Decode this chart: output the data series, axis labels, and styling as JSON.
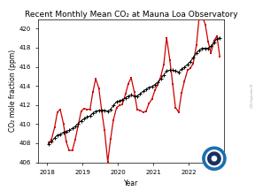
{
  "title": "Recent Monthly Mean CO₂ at Mauna Loa Observatory",
  "xlabel": "Year",
  "ylabel": "CO₂ mole fraction (ppm)",
  "ylim": [
    406,
    421
  ],
  "xlim_start": 2017.75,
  "xlim_end": 2023.0,
  "yticks": [
    406,
    408,
    410,
    412,
    414,
    416,
    418,
    420
  ],
  "xticks": [
    2018,
    2019,
    2020,
    2021,
    2022
  ],
  "bg_color": "#ffffff",
  "plot_bg": "#ffffff",
  "red_color": "#cc0000",
  "black_color": "#000000",
  "red_data": {
    "x": [
      2018.04,
      2018.12,
      2018.21,
      2018.29,
      2018.37,
      2018.46,
      2018.54,
      2018.62,
      2018.71,
      2018.79,
      2018.87,
      2018.96,
      2019.04,
      2019.12,
      2019.21,
      2019.29,
      2019.37,
      2019.46,
      2019.54,
      2019.62,
      2019.71,
      2019.79,
      2019.87,
      2019.96,
      2020.04,
      2020.12,
      2020.21,
      2020.29,
      2020.37,
      2020.46,
      2020.54,
      2020.62,
      2020.71,
      2020.79,
      2020.87,
      2020.96,
      2021.04,
      2021.12,
      2021.21,
      2021.29,
      2021.37,
      2021.46,
      2021.54,
      2021.62,
      2021.71,
      2021.79,
      2021.87,
      2021.96,
      2022.04,
      2022.12,
      2022.21,
      2022.29,
      2022.37,
      2022.46,
      2022.54,
      2022.62,
      2022.71,
      2022.79,
      2022.87
    ],
    "y": [
      408.05,
      408.35,
      409.65,
      411.25,
      411.55,
      410.05,
      408.15,
      407.25,
      407.25,
      408.35,
      409.75,
      411.35,
      411.65,
      411.55,
      411.55,
      413.35,
      414.75,
      413.75,
      411.35,
      409.35,
      406.05,
      408.45,
      410.45,
      411.75,
      411.95,
      412.05,
      413.15,
      414.25,
      414.85,
      413.35,
      411.55,
      411.45,
      411.25,
      411.35,
      412.15,
      412.65,
      413.55,
      414.15,
      415.05,
      416.25,
      419.05,
      416.75,
      414.25,
      411.75,
      411.25,
      413.25,
      414.45,
      415.65,
      415.85,
      416.35,
      418.25,
      421.25,
      421.35,
      420.45,
      418.65,
      417.45,
      418.75,
      419.25,
      417.05
    ]
  },
  "black_data": {
    "x": [
      2018.04,
      2018.12,
      2018.21,
      2018.29,
      2018.37,
      2018.46,
      2018.54,
      2018.62,
      2018.71,
      2018.79,
      2018.87,
      2018.96,
      2019.04,
      2019.12,
      2019.21,
      2019.29,
      2019.37,
      2019.46,
      2019.54,
      2019.62,
      2019.71,
      2019.79,
      2019.87,
      2019.96,
      2020.04,
      2020.12,
      2020.21,
      2020.29,
      2020.37,
      2020.46,
      2020.54,
      2020.62,
      2020.71,
      2020.79,
      2020.87,
      2020.96,
      2021.04,
      2021.12,
      2021.21,
      2021.29,
      2021.37,
      2021.46,
      2021.54,
      2021.62,
      2021.71,
      2021.79,
      2021.87,
      2021.96,
      2022.04,
      2022.12,
      2022.21,
      2022.29,
      2022.37,
      2022.46,
      2022.54,
      2022.62,
      2022.71,
      2022.79,
      2022.87
    ],
    "y": [
      407.95,
      408.15,
      408.55,
      408.85,
      408.95,
      409.15,
      409.25,
      409.35,
      409.55,
      409.75,
      410.05,
      410.35,
      410.55,
      410.75,
      410.85,
      411.15,
      411.35,
      411.45,
      411.45,
      411.45,
      411.35,
      411.55,
      411.95,
      412.35,
      412.45,
      412.55,
      412.75,
      412.95,
      413.05,
      412.95,
      412.95,
      413.15,
      413.45,
      413.65,
      413.85,
      413.95,
      414.15,
      414.35,
      414.75,
      415.15,
      415.55,
      415.65,
      415.65,
      415.55,
      415.45,
      415.75,
      415.95,
      416.25,
      416.55,
      416.95,
      417.45,
      417.75,
      417.95,
      417.95,
      417.95,
      418.15,
      418.55,
      418.95,
      419.05
    ]
  },
  "watermark_text": "2022 September 05",
  "title_fontsize": 6.5,
  "label_fontsize": 5.5,
  "tick_fontsize": 5.0
}
